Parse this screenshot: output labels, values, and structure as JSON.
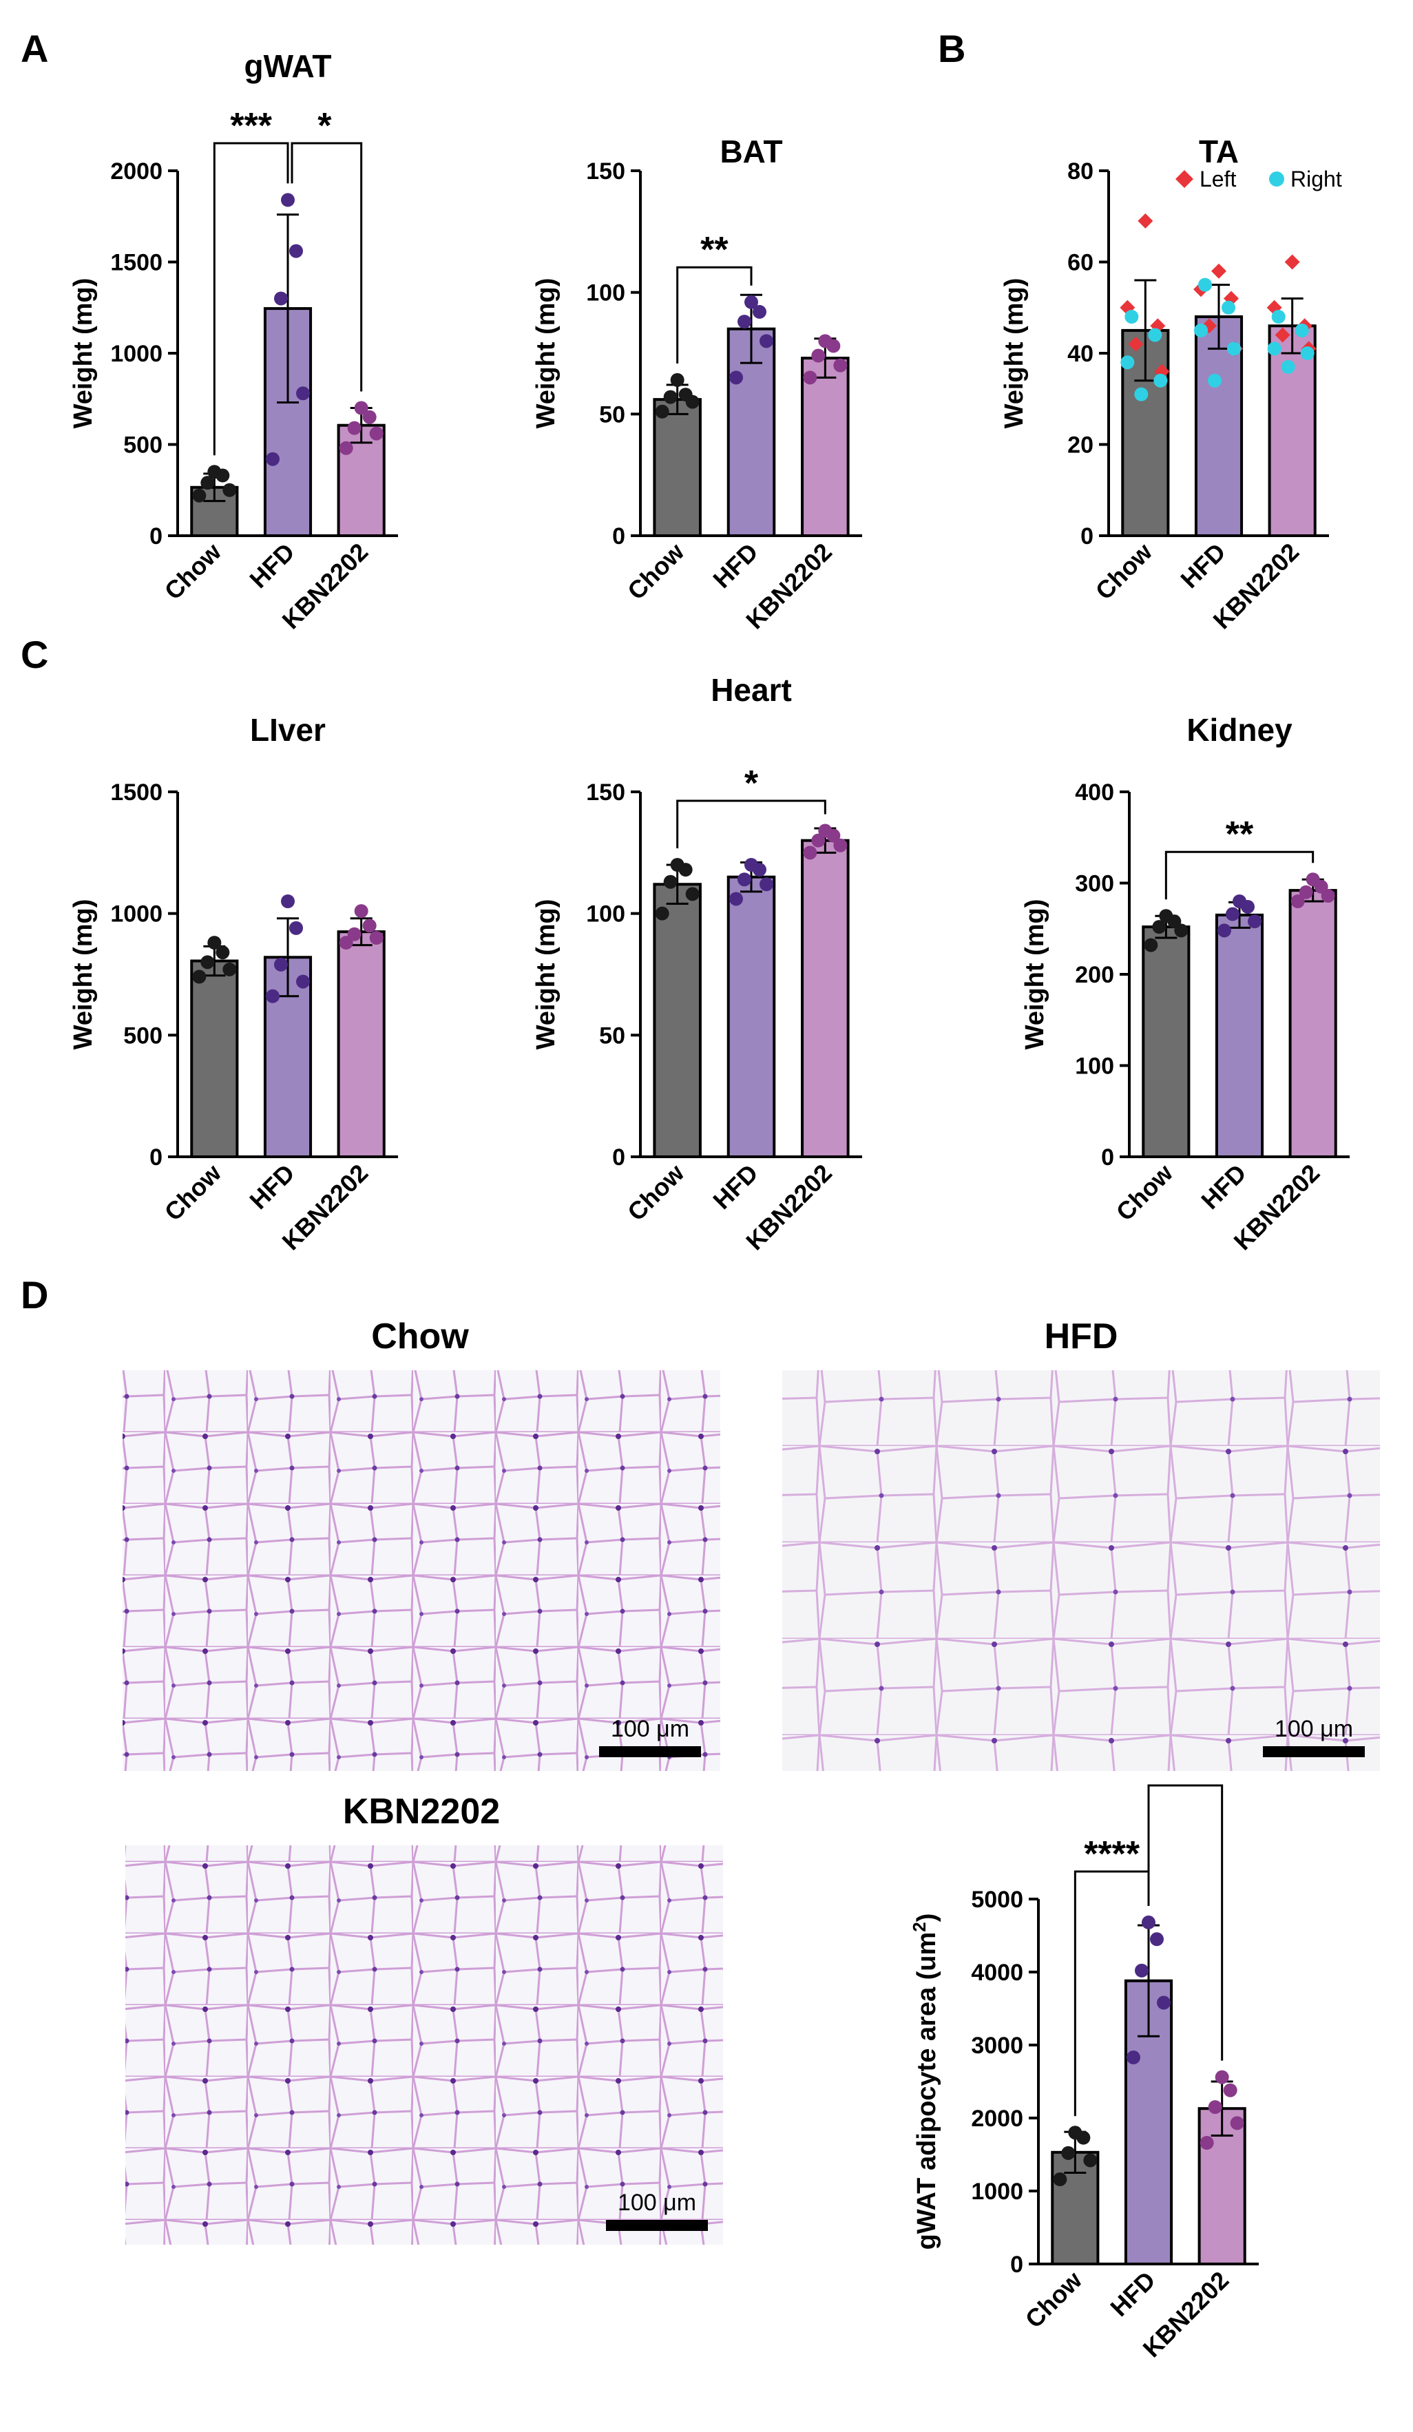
{
  "panels": {
    "A": "A",
    "B": "B",
    "C": "C",
    "D": "D"
  },
  "colors": {
    "Chow": "#6e6e6e",
    "HFD": "#9b86bf",
    "KBN2202": "#c491c4",
    "dot_Chow": "#1a1a1a",
    "dot_HFD": "#4b2a84",
    "dot_KBN2202": "#8a3a8a",
    "left": "#e8353a",
    "right": "#2fd0e4"
  },
  "chart_data": [
    {
      "id": "gwat",
      "type": "bar",
      "title": "gWAT",
      "ylabel": "Weight (mg)",
      "categories": [
        "Chow",
        "HFD",
        "KBN2202"
      ],
      "values": [
        265,
        1245,
        605
      ],
      "error": [
        75,
        515,
        95
      ],
      "ylim": [
        0,
        2000
      ],
      "yticks": [
        "0",
        "500",
        "1000",
        "1500",
        "2000"
      ],
      "points": [
        [
          220,
          250,
          290,
          330,
          350
        ],
        [
          420,
          780,
          1300,
          1560,
          1840
        ],
        [
          480,
          560,
          590,
          650,
          700
        ]
      ],
      "significance": [
        {
          "label": "***",
          "from": 0,
          "to": 1
        },
        {
          "label": "*",
          "from": 1,
          "to": 2
        }
      ]
    },
    {
      "id": "bat",
      "type": "bar",
      "title": "BAT",
      "ylabel": "Weight (mg)",
      "categories": [
        "Chow",
        "HFD",
        "KBN2202"
      ],
      "values": [
        56,
        85,
        73
      ],
      "error": [
        6,
        14,
        8
      ],
      "ylim": [
        0,
        150
      ],
      "yticks": [
        "0",
        "50",
        "100",
        "150"
      ],
      "points": [
        [
          51,
          55,
          57,
          58,
          64
        ],
        [
          65,
          80,
          88,
          92,
          96
        ],
        [
          65,
          70,
          74,
          78,
          80
        ]
      ],
      "significance": [
        {
          "label": "**",
          "from": 0,
          "to": 1
        }
      ]
    },
    {
      "id": "ta",
      "type": "bar",
      "title": "TA",
      "ylabel": "Weight (mg)",
      "categories": [
        "Chow",
        "HFD",
        "KBN2202"
      ],
      "values": [
        45,
        48,
        46
      ],
      "error": [
        11,
        7,
        6
      ],
      "ylim": [
        0,
        80
      ],
      "yticks": [
        "0",
        "20",
        "40",
        "60",
        "80"
      ],
      "legend": {
        "left": "Left",
        "right": "Right",
        "position": "top"
      },
      "left_points": [
        [
          69,
          50,
          46,
          42,
          36
        ],
        [
          58,
          54,
          52,
          46,
          41
        ],
        [
          60,
          50,
          46,
          44,
          41
        ]
      ],
      "right_points": [
        [
          48,
          44,
          38,
          34,
          31
        ],
        [
          55,
          50,
          45,
          41,
          34
        ],
        [
          48,
          45,
          41,
          40,
          37
        ]
      ],
      "significance": []
    },
    {
      "id": "liver",
      "type": "bar",
      "title": "LIver",
      "ylabel": "Weight (mg)",
      "categories": [
        "Chow",
        "HFD",
        "KBN2202"
      ],
      "values": [
        805,
        820,
        925
      ],
      "error": [
        60,
        160,
        55
      ],
      "ylim": [
        0,
        1500
      ],
      "yticks": [
        "0",
        "500",
        "1000",
        "1500"
      ],
      "points": [
        [
          740,
          770,
          800,
          840,
          880
        ],
        [
          660,
          720,
          790,
          940,
          1050
        ],
        [
          880,
          900,
          915,
          950,
          1010
        ]
      ],
      "significance": []
    },
    {
      "id": "heart",
      "type": "bar",
      "title": "Heart",
      "ylabel": "Weight (mg)",
      "categories": [
        "Chow",
        "HFD",
        "KBN2202"
      ],
      "values": [
        112,
        115,
        130
      ],
      "error": [
        8,
        6,
        5
      ],
      "ylim": [
        0,
        150
      ],
      "yticks": [
        "0",
        "50",
        "100",
        "150"
      ],
      "points": [
        [
          100,
          108,
          113,
          118,
          120
        ],
        [
          106,
          112,
          114,
          118,
          120
        ],
        [
          125,
          128,
          130,
          132,
          134
        ]
      ],
      "significance": [
        {
          "label": "*",
          "from": 0,
          "to": 2
        }
      ]
    },
    {
      "id": "kidney",
      "type": "bar",
      "title": "Kidney",
      "ylabel": "Weight (mg)",
      "categories": [
        "Chow",
        "HFD",
        "KBN2202"
      ],
      "values": [
        252,
        265,
        292
      ],
      "error": [
        12,
        14,
        12
      ],
      "ylim": [
        0,
        400
      ],
      "yticks": [
        "0",
        "100",
        "200",
        "300",
        "400"
      ],
      "points": [
        [
          232,
          248,
          252,
          258,
          264
        ],
        [
          248,
          258,
          266,
          274,
          280
        ],
        [
          280,
          286,
          290,
          296,
          304
        ]
      ],
      "significance": [
        {
          "label": "**",
          "from": 0,
          "to": 2
        }
      ]
    },
    {
      "id": "area",
      "type": "bar",
      "title": "",
      "ylabel": "gWAT adipocyte area (um",
      "ylabel_sup": "2",
      "ylabel_end": ")",
      "categories": [
        "Chow",
        "HFD",
        "KBN2202"
      ],
      "values": [
        1530,
        3880,
        2130
      ],
      "error": [
        280,
        760,
        370
      ],
      "ylim": [
        0,
        5000
      ],
      "yticks": [
        "0",
        "1000",
        "2000",
        "3000",
        "4000",
        "5000"
      ],
      "points": [
        [
          1160,
          1420,
          1520,
          1730,
          1800
        ],
        [
          2830,
          3580,
          4020,
          4450,
          4680
        ],
        [
          1660,
          1930,
          2150,
          2380,
          2560
        ]
      ],
      "significance": [
        {
          "label": "****",
          "from": 0,
          "to": 1
        },
        {
          "label": "***",
          "from": 1,
          "to": 2
        }
      ]
    }
  ],
  "micrographs": [
    {
      "id": "mchow",
      "title": "Chow",
      "scale_label": "100 μm"
    },
    {
      "id": "mhfd",
      "title": "HFD",
      "scale_label": "100 μm"
    },
    {
      "id": "mkbn",
      "title": "KBN2202",
      "scale_label": "100 μm"
    }
  ]
}
